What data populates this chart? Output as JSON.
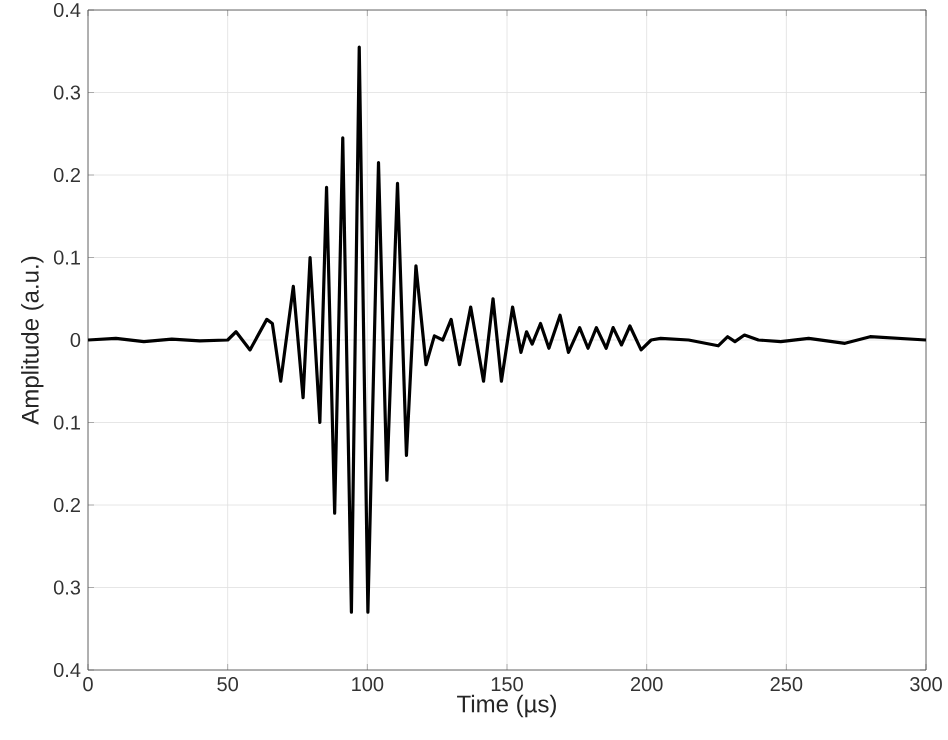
{
  "chart_data": {
    "type": "line",
    "xlabel": "Time (µs)",
    "ylabel": "Amplitude (a.u.)",
    "x": [
      0,
      10,
      20,
      30,
      40,
      50,
      53,
      58,
      64,
      66,
      69,
      73.5,
      77,
      79.5,
      83,
      85.4,
      88.3,
      91.2,
      94.3,
      97.1,
      100.2,
      104,
      107,
      110.8,
      114,
      117.4,
      121,
      124,
      127,
      130,
      133,
      137,
      141.6,
      145,
      148,
      152,
      155,
      157,
      159,
      162,
      165,
      169,
      172,
      176,
      179,
      182,
      185.5,
      188,
      191,
      194,
      198,
      201.6,
      205,
      215,
      225.6,
      229,
      231.6,
      235,
      240,
      248,
      258,
      271,
      280,
      300
    ],
    "values": [
      0,
      0.002,
      -0.002,
      0.001,
      -0.001,
      0,
      0.01,
      -0.012,
      0.025,
      0.02,
      -0.05,
      0.065,
      -0.07,
      0.1,
      -0.1,
      0.185,
      -0.21,
      0.245,
      -0.33,
      0.355,
      -0.33,
      0.215,
      -0.17,
      0.19,
      -0.14,
      0.09,
      -0.03,
      0.005,
      0,
      0.025,
      -0.03,
      0.04,
      -0.05,
      0.05,
      -0.05,
      0.04,
      -0.015,
      0.01,
      -0.005,
      0.02,
      -0.01,
      0.03,
      -0.015,
      0.015,
      -0.01,
      0.015,
      -0.01,
      0.015,
      -0.006,
      0.017,
      -0.012,
      0,
      0.002,
      0,
      -0.007,
      0.004,
      -0.002,
      0.006,
      0,
      -0.002,
      0.002,
      -0.004,
      0.004,
      0
    ],
    "color": "#000000",
    "line_style": "solid",
    "xlim": [
      0,
      300
    ],
    "xticks": [
      0,
      50,
      100,
      150,
      200,
      250,
      300
    ],
    "ylim": [
      -0.4,
      0.4
    ],
    "yticks": [
      {
        "value": -0.4,
        "label": "0.4"
      },
      {
        "value": -0.3,
        "label": "0.3"
      },
      {
        "value": -0.2,
        "label": "0.2"
      },
      {
        "value": -0.1,
        "label": "0.1"
      },
      0,
      0.1,
      0.2,
      0.3,
      0.4
    ],
    "grid": true
  }
}
